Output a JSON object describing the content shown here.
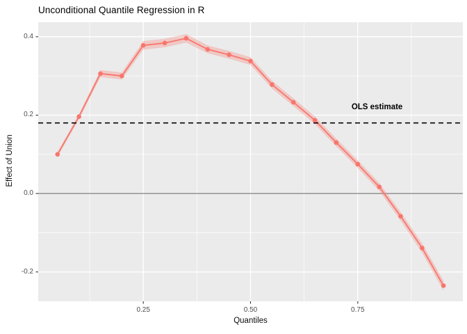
{
  "title": "Unconditional Quantile Regression in R",
  "axes": {
    "x_label": "Quantiles",
    "y_label": "Effect of Union",
    "x_ticks": [
      "0.25",
      "0.50",
      "0.75"
    ],
    "y_ticks": [
      "0.4",
      "0.2",
      "0.0",
      "-0.2"
    ]
  },
  "annotation": {
    "ols_label": "OLS estimate"
  },
  "colors": {
    "background": "#FFFFFF",
    "panel": "#EBEBEB",
    "grid": "#FFFFFF",
    "line": "#F8766D",
    "ribbon": "#F8766D",
    "ribbon_opacity": 0.3,
    "dashed_line": "#000000",
    "zero_line": "#7F7F7F",
    "tick_mark": "#333333",
    "tick_text": "#4D4D4D",
    "text": "#000000"
  },
  "chart_data": {
    "type": "line",
    "title": "Unconditional Quantile Regression in R",
    "xlabel": "Quantiles",
    "ylabel": "Effect of Union",
    "x": [
      0.05,
      0.1,
      0.15,
      0.2,
      0.25,
      0.3,
      0.35,
      0.4,
      0.45,
      0.5,
      0.55,
      0.6,
      0.65,
      0.7,
      0.75,
      0.8,
      0.85,
      0.9,
      0.95
    ],
    "y": [
      0.1,
      0.196,
      0.306,
      0.3,
      0.378,
      0.384,
      0.396,
      0.368,
      0.354,
      0.338,
      0.278,
      0.233,
      0.187,
      0.13,
      0.075,
      0.017,
      -0.058,
      -0.139,
      -0.235
    ],
    "ci_halfwidth": [
      0.006,
      0.006,
      0.009,
      0.009,
      0.011,
      0.011,
      0.011,
      0.01,
      0.01,
      0.01,
      0.01,
      0.01,
      0.01,
      0.01,
      0.01,
      0.01,
      0.011,
      0.012,
      0.013
    ],
    "ols_estimate": 0.18,
    "xlim": [
      0.005,
      0.995
    ],
    "ylim": [
      -0.275,
      0.437
    ],
    "x_tick_values": [
      0.25,
      0.5,
      0.75
    ],
    "x_minor_tick_values": [
      0.125,
      0.375,
      0.625,
      0.875
    ],
    "y_tick_values": [
      0.4,
      0.2,
      0.0,
      -0.2
    ],
    "y_minor_tick_values": [
      0.3,
      0.1,
      -0.1
    ],
    "grid": true,
    "legend_position": "none",
    "annotation_text": "OLS estimate"
  }
}
